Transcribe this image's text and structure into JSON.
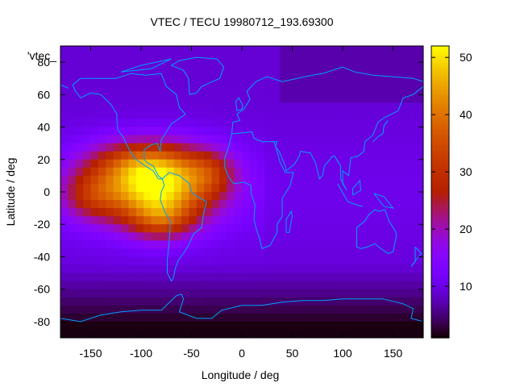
{
  "chart_data": {
    "type": "heatmap",
    "title": "VTEC / TECU 19980712_193.69300",
    "xlabel": "Longitude / deg",
    "ylabel": "Latitude / deg",
    "xlim": [
      -180,
      180
    ],
    "ylim": [
      -90,
      90
    ],
    "x_ticks": [
      -150,
      -100,
      -50,
      0,
      50,
      100,
      150
    ],
    "y_ticks": [
      -80,
      -60,
      -40,
      -20,
      0,
      20,
      40,
      60,
      80
    ],
    "grid": false,
    "series_label": "'vtec_",
    "colorbar": {
      "range": [
        1,
        52
      ],
      "ticks": [
        10,
        20,
        30,
        40,
        50
      ],
      "palette": "black-blue-purple-red-orange-yellow"
    },
    "coastline_color": "#00a0ff",
    "anomaly": {
      "center_lon": -85,
      "center_lat": 0,
      "peak_value": 52,
      "background_value": 12
    }
  }
}
